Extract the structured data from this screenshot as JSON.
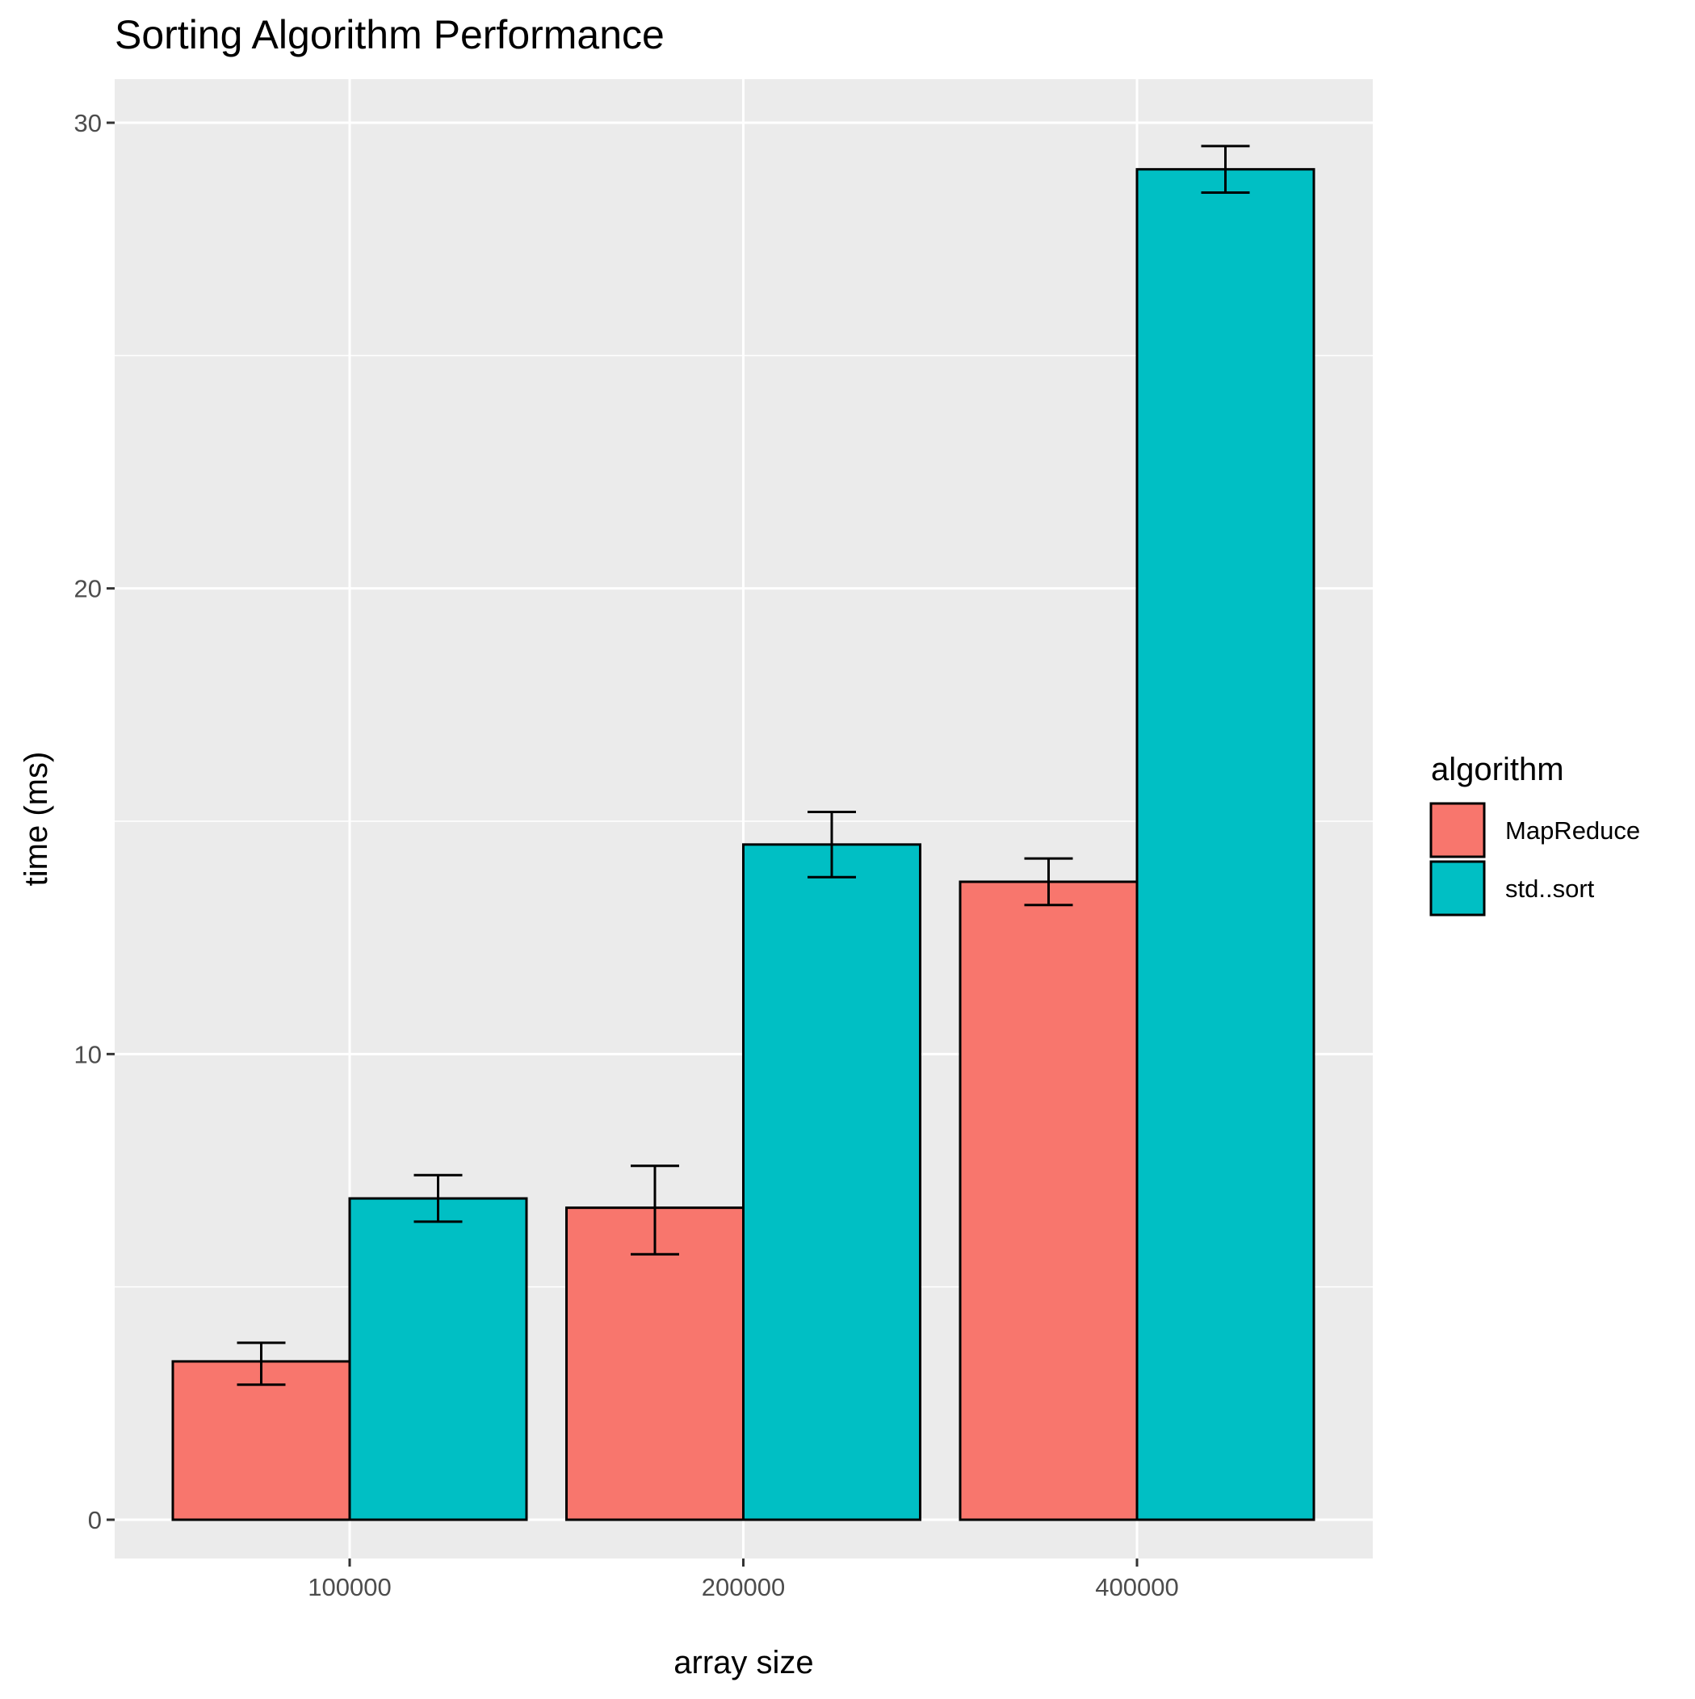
{
  "chart_data": {
    "type": "bar",
    "title": "Sorting Algorithm Performance",
    "xlabel": "array size",
    "ylabel": "time (ms)",
    "categories": [
      "100000",
      "200000",
      "400000"
    ],
    "y_ticks": [
      0,
      10,
      20,
      30
    ],
    "y_tick_labels": [
      "0",
      "10",
      "20",
      "30"
    ],
    "ylim": [
      -0.7,
      30.9
    ],
    "grid": true,
    "legend": {
      "title": "algorithm",
      "placement": "right"
    },
    "series": [
      {
        "name": "MapReduce",
        "color": "#F8766D",
        "values": [
          3.4,
          6.7,
          13.7
        ],
        "error_low": [
          2.9,
          5.7,
          13.2
        ],
        "error_high": [
          3.8,
          7.6,
          14.2
        ]
      },
      {
        "name": "std..sort",
        "color": "#00BFC4",
        "values": [
          6.9,
          14.5,
          29.0
        ],
        "error_low": [
          6.4,
          13.8,
          28.5
        ],
        "error_high": [
          7.4,
          15.2,
          29.5
        ]
      }
    ],
    "colors": {
      "panel_background": "#EBEBEB",
      "grid_line": "#FFFFFF",
      "bar_outline": "#000000",
      "tick_label": "#4D4D4D"
    }
  }
}
